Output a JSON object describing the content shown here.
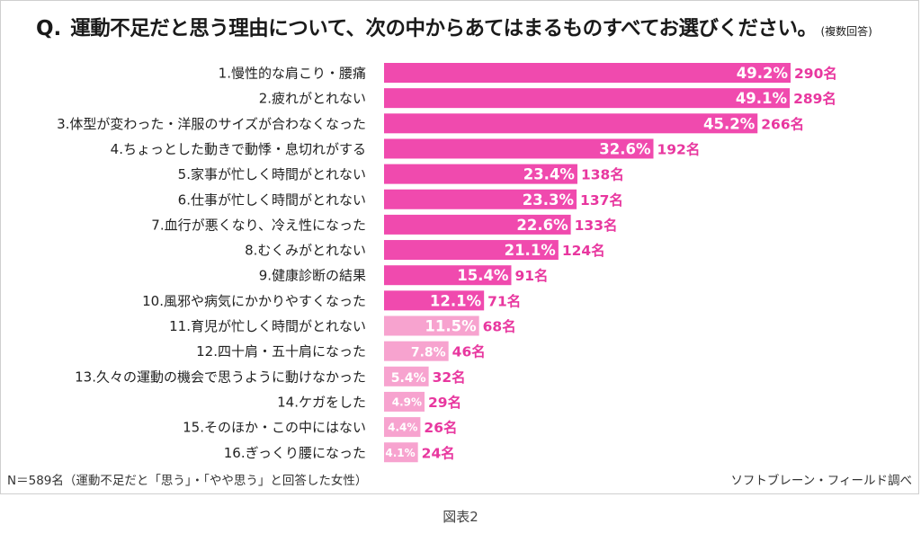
{
  "title": {
    "q_label": "Q.",
    "question": "運動不足だと思う理由について、次の中からあてはまるものすべてお選びください。",
    "answer_note": "(複数回答)"
  },
  "footer": {
    "note": "N＝589名（運動不足だと「思う」・「やや思う」と回答した女性）",
    "credit": "ソフトブレーン・フィールド調べ"
  },
  "caption": "図表2",
  "colors": {
    "bar_dark": "#f04aae",
    "bar_light": "#f7a3cf",
    "count_text": "#e8379f",
    "pct_text": "#ffffff"
  },
  "chart_data": {
    "type": "bar",
    "orientation": "horizontal",
    "categories": [
      "1.慢性的な肩こり・腰痛",
      "2.疲れがとれない",
      "3.体型が変わった・洋服のサイズが合わなくなった",
      "4.ちょっとした動きで動悸・息切れがする",
      "5.家事が忙しく時間がとれない",
      "6.仕事が忙しく時間がとれない",
      "7.血行が悪くなり、冷え性になった",
      "8.むくみがとれない",
      "9.健康診断の結果",
      "10.風邪や病気にかかりやすくなった",
      "11.育児が忙しく時間がとれない",
      "12.四十肩・五十肩になった",
      "13.久々の運動の機会で思うように動けなかった",
      "14.ケガをした",
      "15.そのほか・この中にはない",
      "16.ぎっくり腰になった"
    ],
    "values": [
      49.2,
      49.1,
      45.2,
      32.6,
      23.4,
      23.3,
      22.6,
      21.1,
      15.4,
      12.1,
      11.5,
      7.8,
      5.4,
      4.9,
      4.4,
      4.1
    ],
    "pct_labels": [
      "49.2%",
      "49.1%",
      "45.2%",
      "32.6%",
      "23.4%",
      "23.3%",
      "22.6%",
      "21.1%",
      "15.4%",
      "12.1%",
      "11.5%",
      "7.8%",
      "5.4%",
      "4.9%",
      "4.4%",
      "4.1%"
    ],
    "count_labels": [
      "290名",
      "289名",
      "266名",
      "192名",
      "138名",
      "137名",
      "133名",
      "124名",
      "91名",
      "71名",
      "68名",
      "46名",
      "32名",
      "29名",
      "26名",
      "24名"
    ],
    "xlim": [
      0,
      49.2
    ],
    "grid": false
  }
}
